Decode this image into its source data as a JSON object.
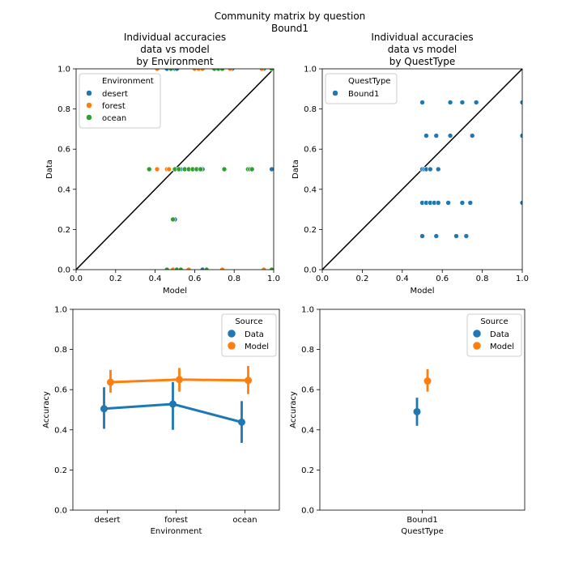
{
  "figure": {
    "suptitle_line1": "Community matrix by question",
    "suptitle_line2": "Bound1"
  },
  "colors": {
    "blue": "#1f77b4",
    "orange": "#ff7f0e",
    "green": "#2ca02c"
  },
  "chart_data": [
    {
      "type": "scatter",
      "title": [
        "Individual accuracies",
        "data vs model",
        "by Environment"
      ],
      "xlabel": "Model",
      "ylabel": "Data",
      "xlim": [
        0.0,
        1.0
      ],
      "ylim": [
        0.0,
        1.0
      ],
      "xticks": [
        "0.0",
        "0.2",
        "0.4",
        "0.6",
        "0.8",
        "1.0"
      ],
      "yticks": [
        "0.0",
        "0.2",
        "0.4",
        "0.6",
        "0.8",
        "1.0"
      ],
      "diagonal": true,
      "legend": {
        "title": "Environment",
        "position": "upper-left"
      },
      "series": [
        {
          "name": "desert",
          "color": "#1f77b4",
          "points": [
            [
              0.46,
              1.0
            ],
            [
              0.5,
              1.0
            ],
            [
              0.51,
              1.0
            ],
            [
              0.79,
              1.0
            ],
            [
              0.95,
              1.0
            ],
            [
              0.5,
              0.5
            ],
            [
              0.53,
              0.5
            ],
            [
              0.62,
              0.5
            ],
            [
              0.64,
              0.5
            ],
            [
              0.99,
              0.5
            ],
            [
              0.5,
              0.25
            ],
            [
              0.5,
              0.0
            ],
            [
              0.53,
              0.0
            ],
            [
              0.64,
              0.0
            ]
          ]
        },
        {
          "name": "forest",
          "color": "#ff7f0e",
          "points": [
            [
              0.41,
              1.0
            ],
            [
              0.6,
              1.0
            ],
            [
              0.62,
              1.0
            ],
            [
              0.64,
              1.0
            ],
            [
              0.78,
              1.0
            ],
            [
              0.94,
              1.0
            ],
            [
              0.41,
              0.5
            ],
            [
              0.46,
              0.5
            ],
            [
              0.47,
              0.5
            ],
            [
              0.52,
              0.5
            ],
            [
              0.59,
              0.5
            ],
            [
              0.63,
              0.5
            ],
            [
              0.49,
              0.0
            ],
            [
              0.57,
              0.0
            ],
            [
              0.74,
              0.0
            ],
            [
              0.95,
              0.0
            ]
          ]
        },
        {
          "name": "ocean",
          "color": "#2ca02c",
          "points": [
            [
              0.48,
              1.0
            ],
            [
              0.7,
              1.0
            ],
            [
              0.72,
              1.0
            ],
            [
              0.74,
              1.0
            ],
            [
              0.99,
              1.0
            ],
            [
              0.37,
              0.5
            ],
            [
              0.5,
              0.5
            ],
            [
              0.52,
              0.5
            ],
            [
              0.55,
              0.5
            ],
            [
              0.57,
              0.5
            ],
            [
              0.59,
              0.5
            ],
            [
              0.61,
              0.5
            ],
            [
              0.63,
              0.5
            ],
            [
              0.75,
              0.5
            ],
            [
              0.87,
              0.5
            ],
            [
              0.88,
              0.5
            ],
            [
              0.89,
              0.5
            ],
            [
              0.49,
              0.25
            ],
            [
              0.46,
              0.0
            ],
            [
              0.51,
              0.0
            ],
            [
              0.53,
              0.0
            ],
            [
              0.66,
              0.0
            ],
            [
              0.99,
              0.0
            ]
          ]
        }
      ]
    },
    {
      "type": "scatter",
      "title": [
        "Individual accuracies",
        "data vs model",
        "by QuestType"
      ],
      "xlabel": "Model",
      "ylabel": "Data",
      "xlim": [
        0.0,
        1.0
      ],
      "ylim": [
        0.0,
        1.0
      ],
      "xticks": [
        "0.0",
        "0.2",
        "0.4",
        "0.6",
        "0.8",
        "1.0"
      ],
      "yticks": [
        "0.0",
        "0.2",
        "0.4",
        "0.6",
        "0.8",
        "1.0"
      ],
      "diagonal": true,
      "legend": {
        "title": "QuestType",
        "position": "upper-left"
      },
      "series": [
        {
          "name": "Bound1",
          "color": "#1f77b4",
          "points": [
            [
              0.5,
              0.833
            ],
            [
              0.64,
              0.833
            ],
            [
              0.7,
              0.833
            ],
            [
              0.77,
              0.833
            ],
            [
              1.0,
              0.833
            ],
            [
              0.52,
              0.667
            ],
            [
              0.57,
              0.667
            ],
            [
              0.64,
              0.667
            ],
            [
              0.75,
              0.667
            ],
            [
              1.0,
              0.667
            ],
            [
              0.5,
              0.5
            ],
            [
              0.51,
              0.5
            ],
            [
              0.52,
              0.5
            ],
            [
              0.54,
              0.5
            ],
            [
              0.58,
              0.5
            ],
            [
              0.5,
              0.333
            ],
            [
              0.52,
              0.333
            ],
            [
              0.54,
              0.333
            ],
            [
              0.56,
              0.333
            ],
            [
              0.58,
              0.333
            ],
            [
              0.63,
              0.333
            ],
            [
              0.7,
              0.333
            ],
            [
              0.74,
              0.333
            ],
            [
              1.0,
              0.333
            ],
            [
              0.5,
              0.167
            ],
            [
              0.57,
              0.167
            ],
            [
              0.67,
              0.167
            ],
            [
              0.72,
              0.167
            ]
          ]
        }
      ]
    },
    {
      "type": "line",
      "title": [],
      "xlabel": "Environment",
      "ylabel": "Accuracy",
      "categories": [
        "desert",
        "forest",
        "ocean"
      ],
      "ylim": [
        0.0,
        1.0
      ],
      "yticks": [
        "0.0",
        "0.2",
        "0.4",
        "0.6",
        "0.8",
        "1.0"
      ],
      "legend": {
        "title": "Source",
        "position": "upper-right"
      },
      "series": [
        {
          "name": "Data",
          "color": "#1f77b4",
          "values": [
            0.505,
            0.528,
            0.438
          ],
          "ci": [
            [
              0.405,
              0.612
            ],
            [
              0.4,
              0.638
            ],
            [
              0.335,
              0.543
            ]
          ]
        },
        {
          "name": "Model",
          "color": "#ff7f0e",
          "values": [
            0.637,
            0.65,
            0.646
          ],
          "ci": [
            [
              0.585,
              0.698
            ],
            [
              0.59,
              0.708
            ],
            [
              0.578,
              0.718
            ]
          ]
        }
      ]
    },
    {
      "type": "line",
      "title": [],
      "xlabel": "QuestType",
      "ylabel": "Accuracy",
      "categories": [
        "Bound1"
      ],
      "ylim": [
        0.0,
        1.0
      ],
      "yticks": [
        "0.0",
        "0.2",
        "0.4",
        "0.6",
        "0.8",
        "1.0"
      ],
      "legend": {
        "title": "Source",
        "position": "upper-right"
      },
      "series": [
        {
          "name": "Data",
          "color": "#1f77b4",
          "values": [
            0.49
          ],
          "ci": [
            [
              0.42,
              0.56
            ]
          ]
        },
        {
          "name": "Model",
          "color": "#ff7f0e",
          "values": [
            0.643
          ],
          "ci": [
            [
              0.59,
              0.702
            ]
          ]
        }
      ]
    }
  ]
}
